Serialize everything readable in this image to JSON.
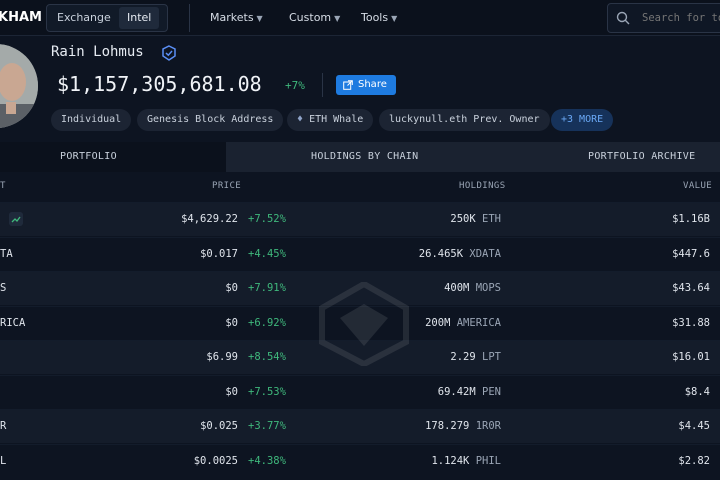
{
  "nav": {
    "logo": "KHAM",
    "exchange_label": "Exchange",
    "intel_label": "Intel",
    "markets_label": "Markets",
    "custom_label": "Custom",
    "tools_label": "Tools",
    "search_placeholder": "Search for to"
  },
  "profile": {
    "name": "Rain Lohmus",
    "balance": "$1,157,305,681.08",
    "change": "+7%",
    "share_label": "Share",
    "tags": [
      "Individual",
      "Genesis Block Address",
      "ETH Whale",
      "luckynull.eth Prev. Owner"
    ],
    "more_label": "+3 MORE"
  },
  "tabs": {
    "portfolio": "PORTFOLIO",
    "holdings_by_chain": "HOLDINGS BY CHAIN",
    "portfolio_archive": "PORTFOLIO ARCHIVE"
  },
  "table": {
    "headers": {
      "asset": "T",
      "price": "PRICE",
      "holdings": "HOLDINGS",
      "value": "VALUE"
    },
    "rows": [
      {
        "token": "",
        "price": "$4,629.22",
        "change": "+7.52%",
        "holdings": "250K",
        "symbol": "ETH",
        "value": "$1.16B"
      },
      {
        "token": "TA",
        "price": "$0.017",
        "change": "+4.45%",
        "holdings": "26.465K",
        "symbol": "XDATA",
        "value": "$447.6"
      },
      {
        "token": "S",
        "price": "$0",
        "change": "+7.91%",
        "holdings": "400M",
        "symbol": "MOPS",
        "value": "$43.64"
      },
      {
        "token": "RICA",
        "price": "$0",
        "change": "+6.92%",
        "holdings": "200M",
        "symbol": "AMERICA",
        "value": "$31.88"
      },
      {
        "token": "",
        "price": "$6.99",
        "change": "+8.54%",
        "holdings": "2.29",
        "symbol": "LPT",
        "value": "$16.01"
      },
      {
        "token": "",
        "price": "$0",
        "change": "+7.53%",
        "holdings": "69.42M",
        "symbol": "PEN",
        "value": "$8.4"
      },
      {
        "token": "R",
        "price": "$0.025",
        "change": "+3.77%",
        "holdings": "178.279",
        "symbol": "1R0R",
        "value": "$4.45"
      },
      {
        "token": "L",
        "price": "$0.0025",
        "change": "+4.38%",
        "holdings": "1.124K",
        "symbol": "PHIL",
        "value": "$2.82"
      }
    ]
  },
  "colors": {
    "accent": "#1e7be0",
    "positive": "#3fb87c",
    "background": "#0d1421"
  }
}
